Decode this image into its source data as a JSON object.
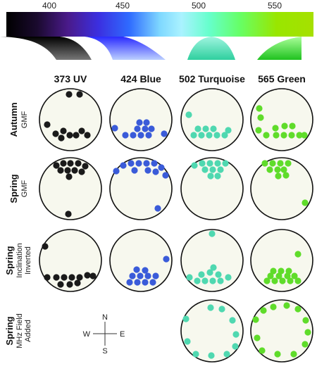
{
  "spectrum": {
    "tick_labels": [
      "400",
      "450",
      "500",
      "550"
    ]
  },
  "columns": [
    {
      "label": "373 UV",
      "color": "#1a1a1a"
    },
    {
      "label": "424 Blue",
      "color": "#3a5bd9"
    },
    {
      "label": "502 Turquoise",
      "color": "#4fd8b0"
    },
    {
      "label": "565 Green",
      "color": "#5fdc2a"
    }
  ],
  "rows": [
    {
      "title": "Autumn",
      "subtitle": [
        "GMF"
      ]
    },
    {
      "title": "Spring",
      "subtitle": [
        "GMF"
      ]
    },
    {
      "title": "Spring",
      "subtitle": [
        "Inclination",
        "Inverted"
      ]
    },
    {
      "title": "Spring",
      "subtitle": [
        "MHz Field",
        "Added"
      ]
    }
  ],
  "compass": {
    "n": "N",
    "s": "S",
    "e": "E",
    "w": "W"
  },
  "colors": {
    "disk_fill": "#f7f8ee",
    "disk_stroke": "#111111"
  }
}
